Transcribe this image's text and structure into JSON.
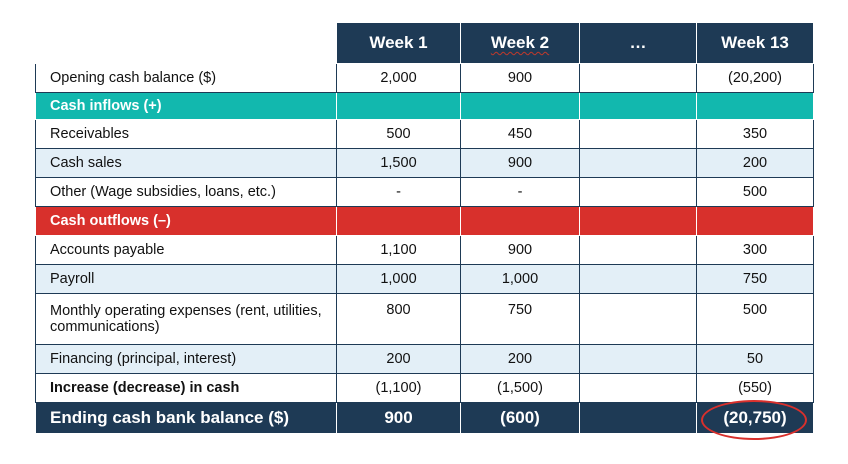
{
  "headers": [
    "",
    "Week 1",
    "Week 2",
    "…",
    "Week 13"
  ],
  "rows": {
    "opening": {
      "label": "Opening cash balance ($)",
      "w1": "2,000",
      "w2": "900",
      "w13": "(20,200)"
    },
    "inflows_header": {
      "label": "Cash inflows (+)"
    },
    "receivables": {
      "label": "Receivables",
      "w1": "500",
      "w2": "450",
      "w13": "350"
    },
    "cash_sales": {
      "label": "Cash sales",
      "w1": "1,500",
      "w2": "900",
      "w13": "200"
    },
    "other": {
      "label": "Other (Wage subsidies, loans, etc.)",
      "w1": "-",
      "w2": "-",
      "w13": "500"
    },
    "outflows_header": {
      "label": "Cash outflows (–)"
    },
    "accounts_payable": {
      "label": "Accounts payable",
      "w1": "1,100",
      "w2": "900",
      "w13": "300"
    },
    "payroll": {
      "label": "Payroll",
      "w1": "1,000",
      "w2": "1,000",
      "w13": "750"
    },
    "monthly_opex": {
      "label": "Monthly operating expenses (rent, utilities, communications)",
      "w1": "800",
      "w2": "750",
      "w13": "500"
    },
    "financing": {
      "label": "Financing (principal, interest)",
      "w1": "200",
      "w2": "200",
      "w13": "50"
    },
    "increase": {
      "label": "Increase (decrease) in cash",
      "w1": "(1,100)",
      "w2": "(1,500)",
      "w13": "(550)"
    },
    "ending": {
      "label": "Ending cash bank balance ($)",
      "w1": "900",
      "w2": "(600)",
      "w13": "(20,750)"
    }
  },
  "colors": {
    "navy": "#1e3a55",
    "teal": "#12b8ae",
    "red": "#d8302c",
    "light_blue": "#e3eff7"
  }
}
